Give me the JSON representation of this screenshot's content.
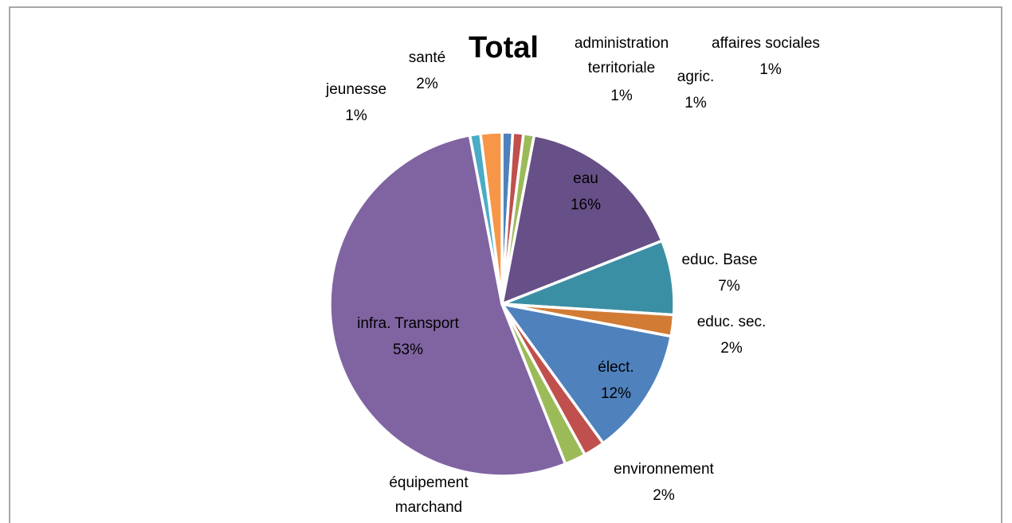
{
  "chart_data": {
    "type": "pie",
    "title": "Total",
    "categories": [
      "affaires sociales",
      "administration territoriale",
      "agric.",
      "eau",
      "educ. Base",
      "educ. sec.",
      "élect.",
      "environnement",
      "équipement marchand",
      "infra. Transport",
      "jeunesse",
      "santé"
    ],
    "values": [
      1,
      1,
      1,
      16,
      7,
      2,
      12,
      2,
      2,
      53,
      1,
      2
    ],
    "value_labels": [
      "1%",
      "1%",
      "1%",
      "16%",
      "7%",
      "2%",
      "12%",
      "2%",
      null,
      "53%",
      "1%",
      "2%"
    ],
    "colors": [
      "#4f81bd",
      "#c0504d",
      "#9bbb59",
      "#674f87",
      "#3b8fa5",
      "#d27b35",
      "#4f81bd",
      "#c0504d",
      "#9bbb59",
      "#8064a2",
      "#4bacc6",
      "#f79646"
    ]
  }
}
